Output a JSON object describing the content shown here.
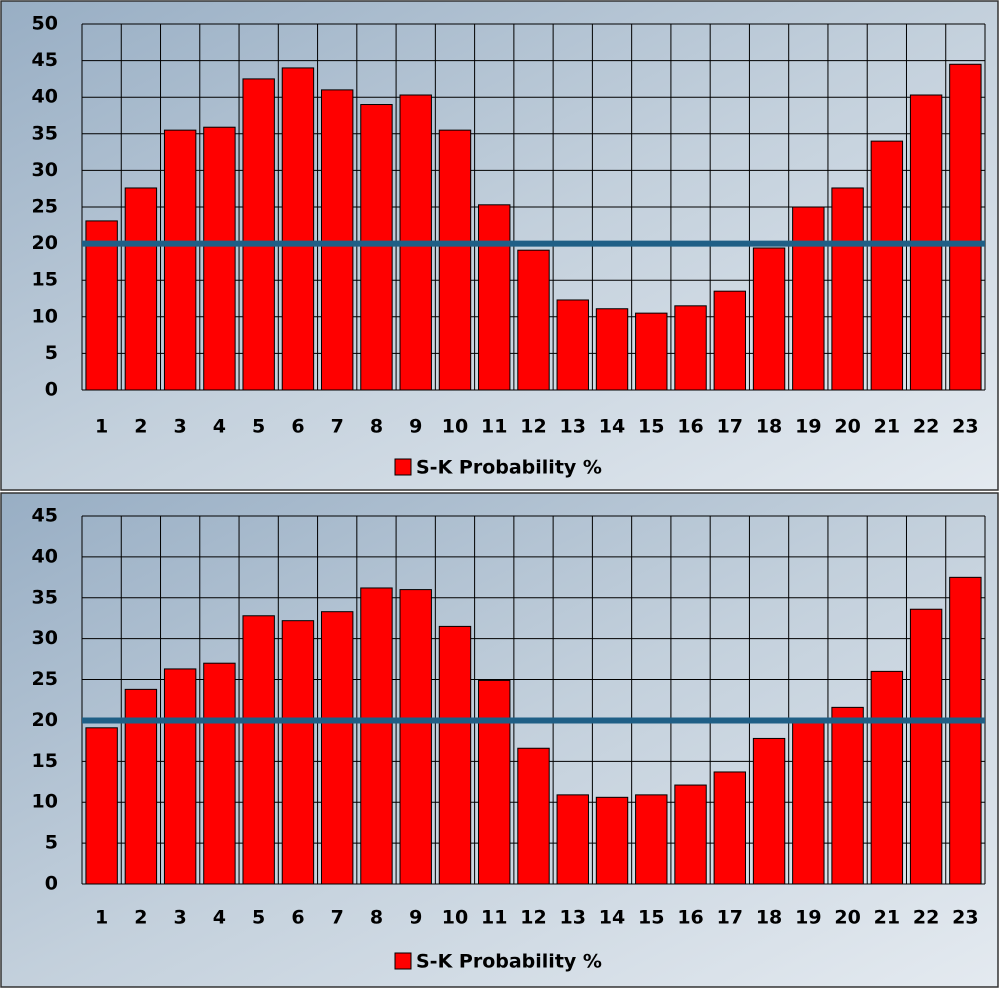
{
  "chart_data": [
    {
      "type": "bar",
      "categories": [
        "1",
        "2",
        "3",
        "4",
        "5",
        "6",
        "7",
        "8",
        "9",
        "10",
        "11",
        "12",
        "13",
        "14",
        "15",
        "16",
        "17",
        "18",
        "19",
        "20",
        "21",
        "22",
        "23"
      ],
      "series": [
        {
          "name": "S-K Probability %",
          "color": "#ff0000",
          "values": [
            23.1,
            27.6,
            35.5,
            35.9,
            42.5,
            44,
            41,
            39,
            40.3,
            35.5,
            25.3,
            19.1,
            12.3,
            11.1,
            10.5,
            11.5,
            13.5,
            19.4,
            25,
            27.6,
            34,
            40.3,
            44.5
          ]
        }
      ],
      "ylim": [
        0,
        50
      ],
      "yticks": [
        0,
        5,
        10,
        15,
        20,
        25,
        30,
        35,
        40,
        45,
        50
      ],
      "grid": true,
      "reference_line": {
        "value": 20,
        "color": "#1f5f86"
      },
      "legend": "bottom"
    },
    {
      "type": "bar",
      "categories": [
        "1",
        "2",
        "3",
        "4",
        "5",
        "6",
        "7",
        "8",
        "9",
        "10",
        "11",
        "12",
        "13",
        "14",
        "15",
        "16",
        "17",
        "18",
        "19",
        "20",
        "21",
        "22",
        "23"
      ],
      "series": [
        {
          "name": "S-K Probability %",
          "color": "#ff0000",
          "values": [
            19.1,
            23.8,
            26.3,
            27,
            32.8,
            32.2,
            33.3,
            36.2,
            36,
            31.5,
            24.9,
            16.6,
            10.9,
            10.6,
            10.9,
            12.1,
            13.7,
            17.8,
            20.2,
            21.6,
            26,
            33.6,
            37.5
          ]
        }
      ],
      "ylim": [
        0,
        45
      ],
      "yticks": [
        0,
        5,
        10,
        15,
        20,
        25,
        30,
        35,
        40,
        45
      ],
      "grid": true,
      "reference_line": {
        "value": 20,
        "color": "#1f5f86"
      },
      "legend": "bottom"
    }
  ]
}
